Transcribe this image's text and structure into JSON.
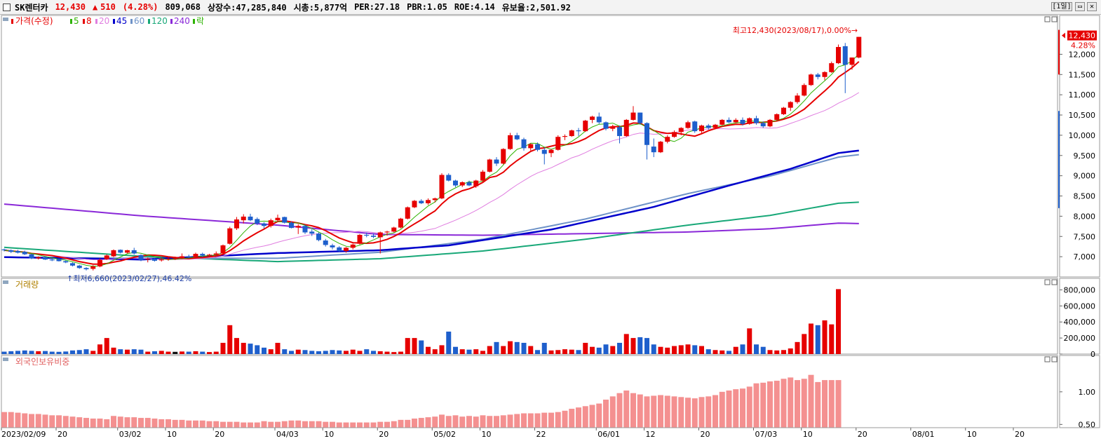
{
  "header": {
    "name": "SK렌터카",
    "price": "12,430",
    "change_symbol": "▲",
    "change": "510",
    "change_pct": "(4.28%)",
    "volume": "809,068",
    "shares": "상장수:47,285,840",
    "mcap": "시총:5,877억",
    "per": "PER:27.18",
    "pbr": "PBR:1.05",
    "roe": "ROE:4.14",
    "float": "유보율:2,501.92",
    "period": "[1일]"
  },
  "price_panel": {
    "legend": [
      {
        "label": "가격(수정)",
        "color": "#e60000"
      },
      {
        "label": "5",
        "color": "#2db300"
      },
      {
        "label": "8",
        "color": "#e60000"
      },
      {
        "label": "20",
        "color": "#e07ee0"
      },
      {
        "label": "45",
        "color": "#0000cc"
      },
      {
        "label": "60",
        "color": "#6f93c8"
      },
      {
        "label": "120",
        "color": "#18a878"
      },
      {
        "label": "240",
        "color": "#8a28d8"
      },
      {
        "label": "락",
        "color": "#2db300"
      }
    ],
    "high_annotation": "최고12,430(2023/08/17),0.00%",
    "low_annotation": "최저6,660(2023/02/27),46.42%",
    "current_price_box": "12,430",
    "current_pct": "4.28%",
    "y_ticks": [
      "12,000",
      "11,500",
      "11,000",
      "10,500",
      "10,000",
      "9,500",
      "9,000",
      "8,500",
      "8,000",
      "7,500",
      "7,000"
    ]
  },
  "volume_panel": {
    "label": "거래량",
    "y_ticks": [
      "800,000",
      "600,000",
      "400,000",
      "200,000",
      "0"
    ]
  },
  "foreign_panel": {
    "label": "외국인보유비중",
    "y_ticks": [
      "1.00",
      "0.50"
    ]
  },
  "x_axis": {
    "labels": [
      "2023/02/09",
      "20",
      "03/02",
      "10",
      "20",
      "04/03",
      "10",
      "20",
      "05/02",
      "10",
      "22",
      "06/01",
      "12",
      "20",
      "07/03",
      "10",
      "20",
      "08/01",
      "10",
      "20"
    ]
  },
  "colors": {
    "up": "#e60000",
    "down": "#1e5fcc"
  },
  "chart_data": {
    "type": "candlestick",
    "dates_start": "2023/02/09",
    "dates_end": "2023/08/17",
    "ohlc": [
      [
        7180,
        7200,
        7130,
        7160
      ],
      [
        7160,
        7180,
        7090,
        7120
      ],
      [
        7140,
        7170,
        7080,
        7100
      ],
      [
        7120,
        7150,
        7040,
        7060
      ],
      [
        7060,
        7070,
        6940,
        6960
      ],
      [
        6960,
        7010,
        6930,
        6990
      ],
      [
        6990,
        7010,
        6920,
        6930
      ],
      [
        6930,
        6960,
        6890,
        6910
      ],
      [
        6940,
        6960,
        6880,
        6890
      ],
      [
        6890,
        6910,
        6840,
        6860
      ],
      [
        6840,
        6860,
        6760,
        6780
      ],
      [
        6780,
        6800,
        6700,
        6720
      ],
      [
        6720,
        6740,
        6660,
        6690
      ],
      [
        6700,
        6790,
        6660,
        6760
      ],
      [
        6760,
        6960,
        6740,
        6920
      ],
      [
        6940,
        7060,
        6920,
        7030
      ],
      [
        7010,
        7180,
        6990,
        7160
      ],
      [
        7170,
        7180,
        7080,
        7100
      ],
      [
        7100,
        7170,
        7080,
        7160
      ],
      [
        7160,
        7220,
        7050,
        7080
      ],
      [
        7040,
        7060,
        6890,
        6920
      ],
      [
        6930,
        6980,
        6860,
        6950
      ],
      [
        6950,
        6960,
        6880,
        6900
      ],
      [
        6910,
        6980,
        6880,
        6930
      ],
      [
        6940,
        7010,
        6900,
        6950
      ],
      [
        6950,
        7000,
        6920,
        6960
      ],
      [
        6960,
        7080,
        6940,
        7010
      ],
      [
        7010,
        7050,
        6960,
        6990
      ],
      [
        6990,
        7100,
        6970,
        7070
      ],
      [
        7070,
        7100,
        6990,
        7030
      ],
      [
        7030,
        7070,
        7000,
        7050
      ],
      [
        7050,
        7130,
        7030,
        7080
      ],
      [
        7080,
        7300,
        7060,
        7280
      ],
      [
        7320,
        7740,
        7300,
        7700
      ],
      [
        7700,
        7980,
        7660,
        7920
      ],
      [
        7900,
        8050,
        7820,
        7990
      ],
      [
        7990,
        8060,
        7880,
        7900
      ],
      [
        7930,
        7970,
        7780,
        7820
      ],
      [
        7820,
        7850,
        7700,
        7760
      ],
      [
        7760,
        7940,
        7720,
        7900
      ],
      [
        7900,
        8040,
        7860,
        7960
      ],
      [
        7980,
        7990,
        7820,
        7840
      ],
      [
        7840,
        7870,
        7700,
        7710
      ],
      [
        7720,
        7800,
        7560,
        7760
      ],
      [
        7760,
        7790,
        7560,
        7600
      ],
      [
        7620,
        7680,
        7510,
        7570
      ],
      [
        7570,
        7600,
        7380,
        7410
      ],
      [
        7400,
        7440,
        7250,
        7290
      ],
      [
        7280,
        7320,
        7180,
        7230
      ],
      [
        7230,
        7260,
        7120,
        7140
      ],
      [
        7140,
        7240,
        7100,
        7220
      ],
      [
        7220,
        7320,
        7180,
        7300
      ],
      [
        7320,
        7560,
        7300,
        7540
      ],
      [
        7540,
        7600,
        7480,
        7520
      ],
      [
        7520,
        7580,
        7460,
        7490
      ],
      [
        7480,
        7620,
        7080,
        7600
      ],
      [
        7600,
        7640,
        7520,
        7620
      ],
      [
        7620,
        7740,
        7600,
        7720
      ],
      [
        7720,
        7960,
        7700,
        7940
      ],
      [
        7940,
        8240,
        7920,
        8220
      ],
      [
        8220,
        8400,
        8200,
        8380
      ],
      [
        8380,
        8420,
        8300,
        8320
      ],
      [
        8320,
        8440,
        8280,
        8400
      ],
      [
        8400,
        8460,
        8340,
        8440
      ],
      [
        8440,
        9060,
        8420,
        9020
      ],
      [
        9020,
        9060,
        8860,
        8880
      ],
      [
        8880,
        8900,
        8720,
        8760
      ],
      [
        8760,
        8860,
        8720,
        8840
      ],
      [
        8840,
        8880,
        8740,
        8760
      ],
      [
        8740,
        8900,
        8700,
        8880
      ],
      [
        8880,
        9140,
        8860,
        9100
      ],
      [
        9100,
        9420,
        9080,
        9400
      ],
      [
        9400,
        9460,
        9240,
        9300
      ],
      [
        9300,
        9680,
        9280,
        9660
      ],
      [
        9660,
        10060,
        9640,
        10000
      ],
      [
        10000,
        10060,
        9880,
        9900
      ],
      [
        9900,
        9940,
        9620,
        9680
      ],
      [
        9680,
        9800,
        9620,
        9780
      ],
      [
        9780,
        9820,
        9600,
        9640
      ],
      [
        9640,
        9700,
        9280,
        9540
      ],
      [
        9560,
        9660,
        9460,
        9640
      ],
      [
        9640,
        10000,
        9620,
        9960
      ],
      [
        9960,
        10020,
        9880,
        9980
      ],
      [
        9980,
        10140,
        9960,
        10120
      ],
      [
        10120,
        10180,
        9980,
        10100
      ],
      [
        10100,
        10380,
        10080,
        10360
      ],
      [
        10380,
        10480,
        10300,
        10460
      ],
      [
        10460,
        10560,
        10280,
        10320
      ],
      [
        10320,
        10340,
        10120,
        10160
      ],
      [
        10160,
        10260,
        10100,
        10200
      ],
      [
        10200,
        10240,
        9800,
        9980
      ],
      [
        9980,
        10400,
        9960,
        10380
      ],
      [
        10380,
        10720,
        10360,
        10560
      ],
      [
        10560,
        10560,
        10260,
        10300
      ],
      [
        10300,
        10320,
        9400,
        9760
      ],
      [
        9720,
        9920,
        9460,
        9580
      ],
      [
        9580,
        9860,
        9560,
        9840
      ],
      [
        9840,
        10000,
        9800,
        9960
      ],
      [
        9960,
        10120,
        9940,
        10080
      ],
      [
        10080,
        10200,
        10000,
        10180
      ],
      [
        10180,
        10360,
        10160,
        10320
      ],
      [
        10340,
        10360,
        10060,
        10100
      ],
      [
        10100,
        10260,
        10060,
        10240
      ],
      [
        10240,
        10280,
        10140,
        10180
      ],
      [
        10180,
        10280,
        10160,
        10260
      ],
      [
        10260,
        10400,
        10240,
        10380
      ],
      [
        10380,
        10440,
        10300,
        10320
      ],
      [
        10320,
        10420,
        10300,
        10380
      ],
      [
        10380,
        10440,
        10240,
        10280
      ],
      [
        10280,
        10440,
        10260,
        10420
      ],
      [
        10420,
        10480,
        10260,
        10300
      ],
      [
        10300,
        10340,
        10180,
        10220
      ],
      [
        10220,
        10400,
        10200,
        10380
      ],
      [
        10380,
        10540,
        10360,
        10520
      ],
      [
        10520,
        10700,
        10500,
        10680
      ],
      [
        10680,
        10840,
        10600,
        10820
      ],
      [
        10820,
        11040,
        10780,
        10980
      ],
      [
        10980,
        11280,
        10960,
        11240
      ],
      [
        11240,
        11520,
        11220,
        11500
      ],
      [
        11500,
        11540,
        11380,
        11440
      ],
      [
        11440,
        11580,
        11360,
        11560
      ],
      [
        11560,
        11820,
        11540,
        11780
      ],
      [
        11780,
        12240,
        11760,
        12180
      ],
      [
        12200,
        12280,
        11040,
        11740
      ],
      [
        11740,
        11920,
        11620,
        11920
      ],
      [
        11920,
        12430,
        11900,
        12430
      ]
    ],
    "volume": [
      30000,
      35000,
      40000,
      45000,
      40000,
      35000,
      38000,
      30000,
      28000,
      32000,
      45000,
      50000,
      60000,
      40000,
      120000,
      200000,
      80000,
      60000,
      55000,
      60000,
      55000,
      30000,
      35000,
      40000,
      30000,
      28000,
      32000,
      30000,
      35000,
      30000,
      25000,
      30000,
      140000,
      360000,
      200000,
      140000,
      130000,
      110000,
      80000,
      60000,
      140000,
      60000,
      40000,
      55000,
      50000,
      40000,
      35000,
      40000,
      50000,
      45000,
      40000,
      55000,
      40000,
      60000,
      40000,
      35000,
      30000,
      25000,
      30000,
      200000,
      200000,
      170000,
      90000,
      60000,
      110000,
      280000,
      90000,
      60000,
      55000,
      60000,
      40000,
      100000,
      150000,
      100000,
      160000,
      150000,
      140000,
      100000,
      50000,
      140000,
      45000,
      50000,
      60000,
      55000,
      50000,
      140000,
      90000,
      80000,
      120000,
      100000,
      140000,
      250000,
      200000,
      210000,
      200000,
      120000,
      90000,
      80000,
      100000,
      110000,
      120000,
      110000,
      100000,
      60000,
      50000,
      45000,
      40000,
      90000,
      120000,
      320000,
      120000,
      90000,
      50000,
      45000,
      50000,
      70000,
      150000,
      250000,
      380000,
      360000,
      420000,
      370000,
      809068
    ],
    "foreign_ratio": [
      0.69,
      0.69,
      0.68,
      0.67,
      0.66,
      0.66,
      0.65,
      0.64,
      0.64,
      0.63,
      0.62,
      0.61,
      0.6,
      0.59,
      0.59,
      0.58,
      0.63,
      0.62,
      0.61,
      0.61,
      0.6,
      0.6,
      0.59,
      0.58,
      0.58,
      0.57,
      0.57,
      0.56,
      0.56,
      0.56,
      0.55,
      0.55,
      0.54,
      0.54,
      0.54,
      0.53,
      0.53,
      0.53,
      0.55,
      0.54,
      0.54,
      0.55,
      0.56,
      0.56,
      0.55,
      0.55,
      0.55,
      0.54,
      0.54,
      0.53,
      0.53,
      0.53,
      0.53,
      0.53,
      0.53,
      0.54,
      0.54,
      0.55,
      0.57,
      0.57,
      0.59,
      0.6,
      0.61,
      0.62,
      0.65,
      0.63,
      0.64,
      0.62,
      0.63,
      0.62,
      0.64,
      0.63,
      0.63,
      0.64,
      0.65,
      0.66,
      0.67,
      0.67,
      0.67,
      0.68,
      0.68,
      0.69,
      0.71,
      0.74,
      0.76,
      0.78,
      0.8,
      0.82,
      0.88,
      0.93,
      0.98,
      1.02,
      0.98,
      0.96,
      0.93,
      0.94,
      0.95,
      0.94,
      0.93,
      0.92,
      0.91,
      0.9,
      0.92,
      0.93,
      0.95,
      1.0,
      1.02,
      1.04,
      1.05,
      1.08,
      1.13,
      1.14,
      1.16,
      1.17,
      1.2,
      1.22,
      1.18,
      1.2,
      1.26,
      1.15,
      1.18,
      1.18,
      1.18
    ],
    "ma": {
      "ma45": [
        [
          0,
          6990
        ],
        [
          20,
          6930
        ],
        [
          40,
          7090
        ],
        [
          55,
          7160
        ],
        [
          65,
          7280
        ],
        [
          80,
          7670
        ],
        [
          95,
          8230
        ],
        [
          105,
          8710
        ],
        [
          115,
          9170
        ],
        [
          122,
          9560
        ]
      ],
      "ma60": [
        [
          0,
          6990
        ],
        [
          20,
          6960
        ],
        [
          40,
          6960
        ],
        [
          55,
          7110
        ],
        [
          70,
          7430
        ],
        [
          85,
          7930
        ],
        [
          100,
          8560
        ],
        [
          112,
          8990
        ],
        [
          122,
          9460
        ]
      ],
      "ma120": [
        [
          0,
          7230
        ],
        [
          20,
          7010
        ],
        [
          40,
          6880
        ],
        [
          55,
          6950
        ],
        [
          70,
          7140
        ],
        [
          85,
          7430
        ],
        [
          100,
          7780
        ],
        [
          112,
          8020
        ],
        [
          122,
          8320
        ]
      ],
      "ma240": [
        [
          0,
          8300
        ],
        [
          20,
          8010
        ],
        [
          40,
          7780
        ],
        [
          55,
          7550
        ],
        [
          70,
          7530
        ],
        [
          85,
          7570
        ],
        [
          100,
          7610
        ],
        [
          112,
          7690
        ],
        [
          122,
          7830
        ]
      ]
    },
    "ylim_price": [
      6500,
      12700
    ],
    "ylim_volume": [
      0,
      900000
    ],
    "ylim_foreign": [
      0.45,
      1.45
    ]
  }
}
